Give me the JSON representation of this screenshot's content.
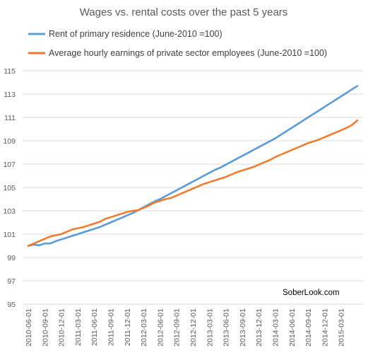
{
  "chart_data": {
    "type": "line",
    "title": "Wages vs. rental costs over the past 5 years",
    "xlabel": "",
    "ylabel": "",
    "ylim": [
      95,
      115
    ],
    "yticks": [
      95,
      97,
      99,
      101,
      103,
      105,
      107,
      109,
      111,
      113,
      115
    ],
    "grid": true,
    "legend_position": "top",
    "x_tick_labels": [
      "2010-06-01",
      "2010-09-01",
      "2010-12-01",
      "2011-03-01",
      "2011-06-01",
      "2011-09-01",
      "2011-12-01",
      "2012-03-01",
      "2012-06-01",
      "2012-09-01",
      "2012-12-01",
      "2013-03-01",
      "2013-06-01",
      "2013-09-01",
      "2013-12-01",
      "2014-03-01",
      "2014-06-01",
      "2014-09-01",
      "2014-12-01",
      "2015-03-01"
    ],
    "series": [
      {
        "name": "Rent of primary residence (June-2010 =100)",
        "color": "#5b9bd5",
        "values": [
          100.0,
          100.1,
          100.05,
          100.2,
          100.2,
          100.4,
          100.55,
          100.7,
          100.85,
          101.0,
          101.15,
          101.3,
          101.45,
          101.6,
          101.8,
          102.0,
          102.2,
          102.4,
          102.6,
          102.8,
          103.05,
          103.3,
          103.55,
          103.8,
          104.0,
          104.25,
          104.5,
          104.75,
          105.0,
          105.25,
          105.5,
          105.75,
          106.0,
          106.25,
          106.5,
          106.7,
          106.95,
          107.2,
          107.45,
          107.7,
          107.95,
          108.2,
          108.45,
          108.7,
          108.95,
          109.2,
          109.5,
          109.8,
          110.1,
          110.4,
          110.7,
          111.0,
          111.3,
          111.6,
          111.9,
          112.2,
          112.5,
          112.8,
          113.1,
          113.4,
          113.7
        ]
      },
      {
        "name": "Average hourly earnings of private sector employees (June-2010 =100)",
        "color": "#ed7d31",
        "values": [
          100.0,
          100.2,
          100.4,
          100.6,
          100.8,
          100.9,
          101.0,
          101.2,
          101.4,
          101.5,
          101.6,
          101.75,
          101.9,
          102.05,
          102.3,
          102.45,
          102.6,
          102.75,
          102.9,
          103.0,
          103.05,
          103.25,
          103.45,
          103.7,
          103.85,
          104.0,
          104.1,
          104.3,
          104.5,
          104.7,
          104.9,
          105.1,
          105.3,
          105.45,
          105.6,
          105.75,
          105.9,
          106.1,
          106.3,
          106.45,
          106.6,
          106.75,
          106.95,
          107.15,
          107.35,
          107.6,
          107.8,
          108.0,
          108.2,
          108.4,
          108.6,
          108.8,
          108.95,
          109.1,
          109.3,
          109.5,
          109.7,
          109.9,
          110.1,
          110.35,
          110.75
        ]
      }
    ],
    "annotations": [
      "SoberLook.com"
    ]
  }
}
